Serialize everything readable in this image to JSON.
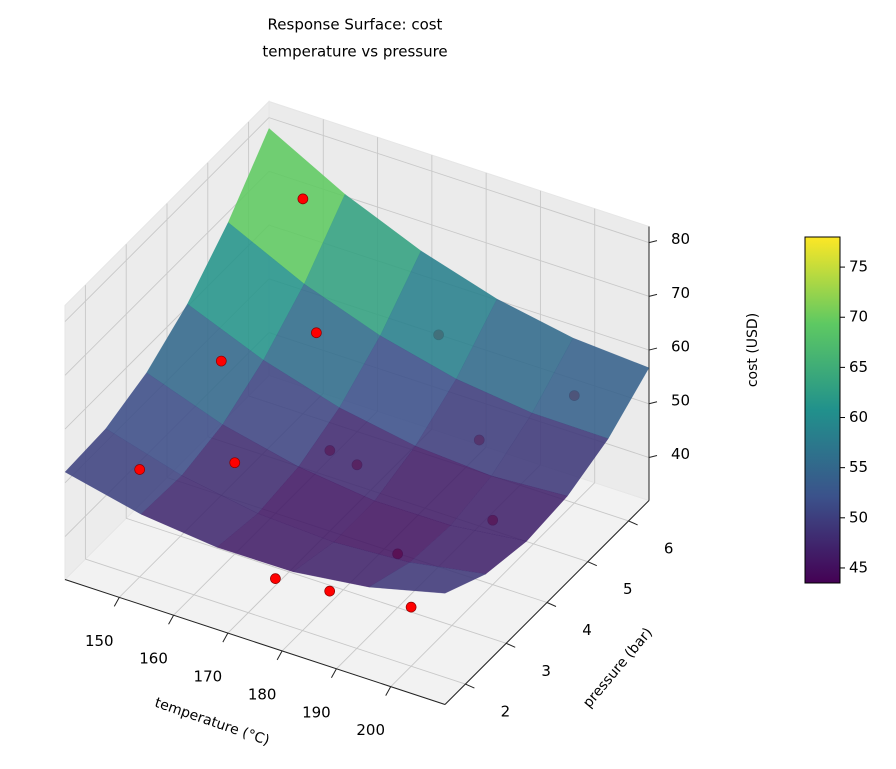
{
  "chart_data": {
    "type": "surface3d",
    "title": [
      "Response Surface: cost",
      "temperature vs pressure"
    ],
    "xlabel": "temperature (°C)",
    "ylabel": "pressure (bar)",
    "zlabel": "cost (USD)",
    "xlim": [
      140,
      210
    ],
    "ylim": [
      1.5,
      6.5
    ],
    "zlim": [
      32,
      83
    ],
    "xticks": [
      150,
      160,
      170,
      180,
      190,
      200
    ],
    "yticks": [
      2,
      3,
      4,
      5,
      6
    ],
    "zticks": [
      40,
      50,
      60,
      70,
      80
    ],
    "colormap": "viridis",
    "clim": [
      43.5,
      78
    ],
    "colorbar_ticks": [
      45,
      50,
      55,
      60,
      65,
      70,
      75
    ],
    "surface": {
      "x": [
        140,
        154,
        168,
        182,
        196,
        210
      ],
      "y": [
        1.5,
        2.5,
        3.5,
        4.5,
        5.5,
        6.5
      ],
      "z": [
        [
          52.0,
          48.8,
          47.3,
          47.4,
          49.2,
          52.7
        ],
        [
          52.5,
          48.4,
          46.0,
          45.3,
          46.2,
          48.7
        ],
        [
          55.3,
          50.3,
          47.1,
          45.4,
          45.5,
          47.2
        ],
        [
          60.5,
          54.7,
          50.5,
          48.0,
          47.1,
          48.0
        ],
        [
          68.1,
          61.3,
          56.3,
          52.9,
          51.2,
          51.1
        ],
        [
          78.0,
          70.4,
          64.5,
          60.2,
          57.6,
          56.7
        ]
      ]
    },
    "points": {
      "color": "#ff0000",
      "x": [
        150,
        150,
        150,
        175,
        175,
        175,
        200,
        200,
        200,
        160,
        190,
        160,
        190,
        185,
        170
      ],
      "y": [
        2,
        4,
        6,
        2,
        4,
        6,
        2,
        4,
        6,
        3,
        5,
        5,
        3,
        2,
        4
      ],
      "z": [
        52,
        57,
        72,
        40,
        46,
        55,
        43,
        44,
        52,
        49,
        48,
        58,
        42,
        41,
        47
      ]
    },
    "grid": true
  }
}
